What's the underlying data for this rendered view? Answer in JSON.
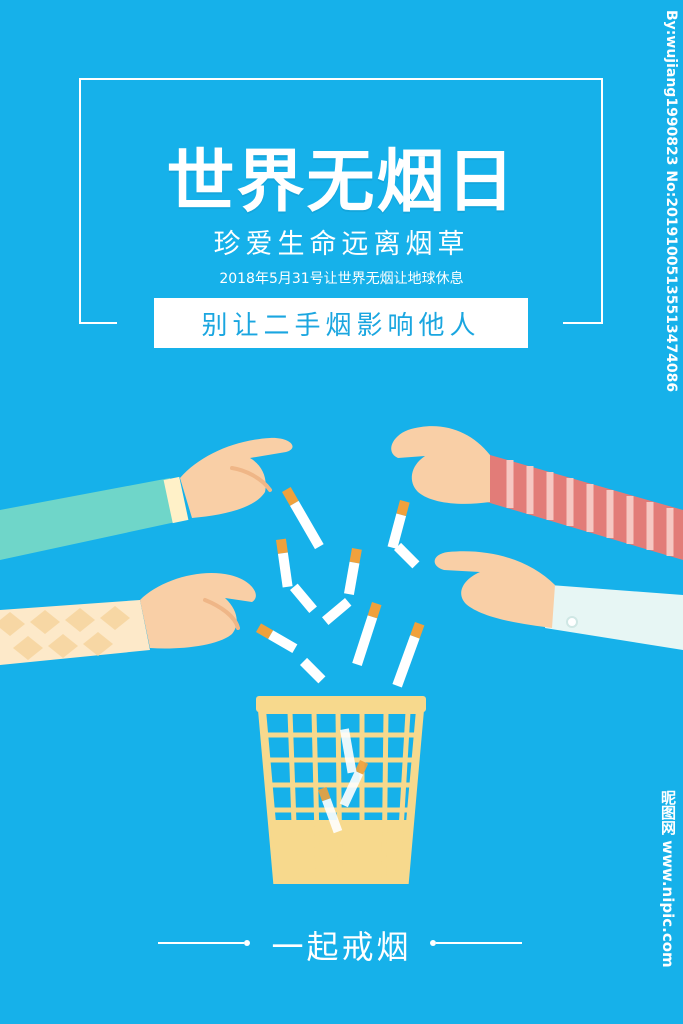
{
  "poster": {
    "title": "世界无烟日",
    "subtitle": "珍爱生命远离烟草",
    "date_line": "2018年5月31号让世界无烟让地球休息",
    "banner": "别让二手烟影响他人",
    "footer": "一起戒烟"
  },
  "watermark": {
    "side": "By:wujiang1990823 No:20191005135513474086",
    "site": "昵图网 www.nipic.com"
  },
  "colors": {
    "background": "#16b1ea",
    "basket": "#f7d98d",
    "cigarette_filter": "#f0a13c"
  }
}
